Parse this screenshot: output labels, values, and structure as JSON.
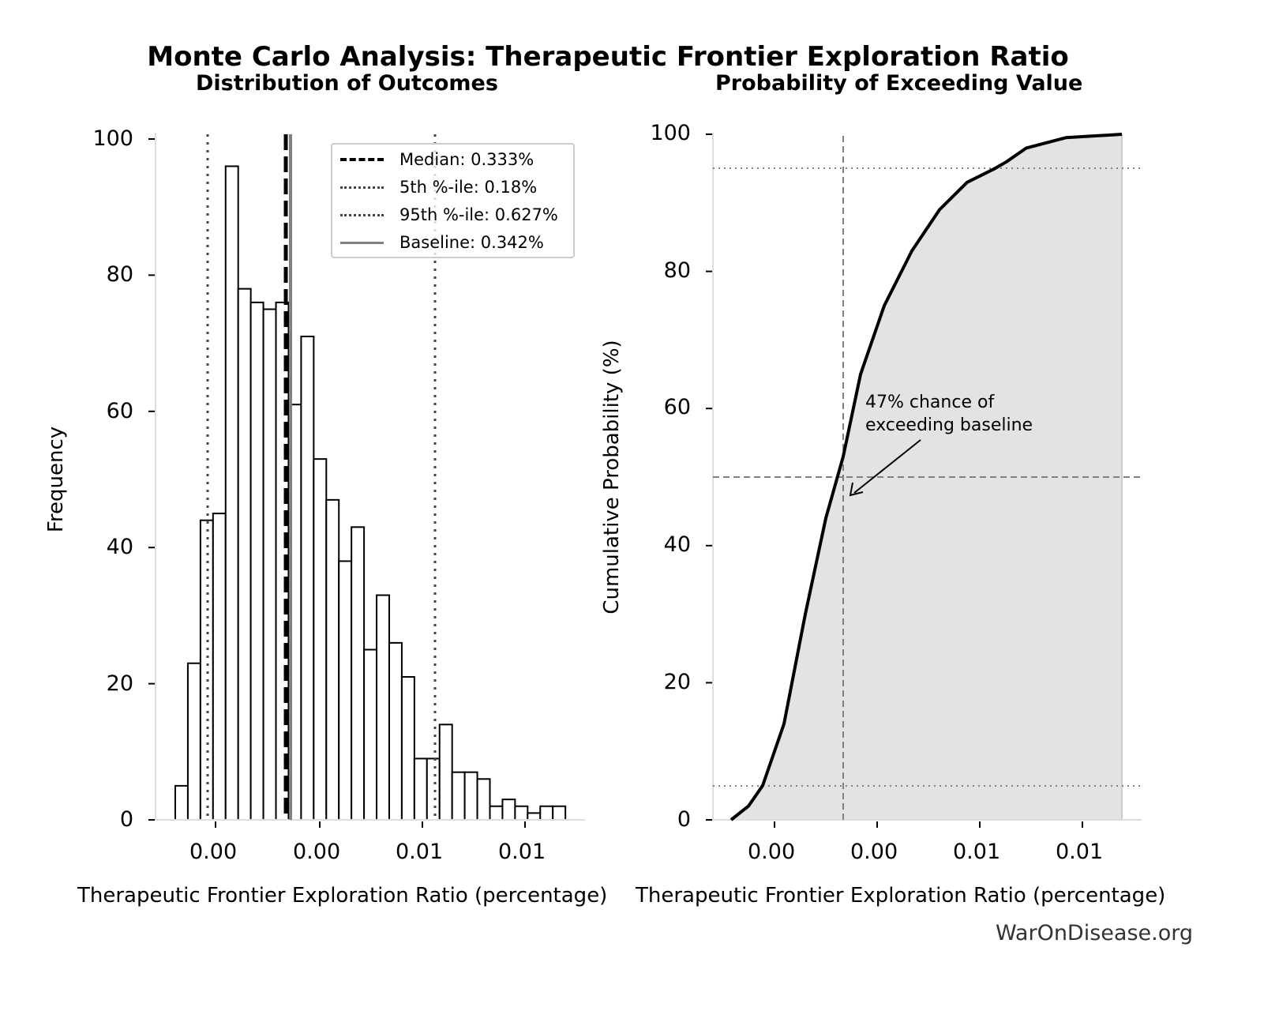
{
  "title": "Monte Carlo Analysis: Therapeutic Frontier Exploration Ratio",
  "footer": "WarOnDisease.org",
  "left_panel": {
    "subtitle": "Distribution of Outcomes",
    "xlabel": "Therapeutic Frontier Exploration Ratio (percentage)",
    "ylabel": "Frequency",
    "yticks": [
      "0",
      "20",
      "40",
      "60",
      "80",
      "100"
    ],
    "xticks": [
      "0.00",
      "0.00",
      "0.01",
      "0.01"
    ],
    "legend": [
      {
        "label": "Median: 0.333%",
        "style": "dashed",
        "color": "#000000"
      },
      {
        "label": "5th %-ile: 0.18%",
        "style": "dotted",
        "color": "#444444"
      },
      {
        "label": "95th %-ile: 0.627%",
        "style": "dotted",
        "color": "#444444"
      },
      {
        "label": "Baseline: 0.342%",
        "style": "solid",
        "color": "#808080"
      }
    ]
  },
  "right_panel": {
    "subtitle": "Probability of Exceeding Value",
    "xlabel": "Therapeutic Frontier Exploration Ratio (percentage)",
    "ylabel": "Cumulative Probability (%)",
    "yticks": [
      "0",
      "20",
      "40",
      "60",
      "80",
      "100"
    ],
    "xticks": [
      "0.00",
      "0.00",
      "0.01",
      "0.01"
    ],
    "annotation_line1": "47% chance of",
    "annotation_line2": "exceeding baseline"
  },
  "colors": {
    "bar_edge": "#000000",
    "bar_fill": "#ffffff",
    "fill_area": "#e3e3e3",
    "ref_lines": "#808080",
    "footer": "#333333"
  },
  "chart_data": [
    {
      "type": "bar",
      "title": "Distribution of Outcomes",
      "xlabel": "Therapeutic Frontier Exploration Ratio (percentage)",
      "ylabel": "Frequency",
      "ylim": [
        0,
        100
      ],
      "bin_range_percent": [
        0.1,
        0.85
      ],
      "values": [
        5,
        23,
        44,
        45,
        96,
        78,
        76,
        75,
        76,
        61,
        71,
        53,
        47,
        38,
        43,
        25,
        33,
        26,
        21,
        9,
        9,
        14,
        7,
        7,
        6,
        2,
        3,
        2,
        1,
        2,
        2
      ],
      "vlines": [
        {
          "name": "Median",
          "value": 0.333,
          "style": "dashed"
        },
        {
          "name": "5th %-ile",
          "value": 0.18,
          "style": "dotted"
        },
        {
          "name": "95th %-ile",
          "value": 0.627,
          "style": "dotted"
        },
        {
          "name": "Baseline",
          "value": 0.342,
          "style": "solid"
        }
      ],
      "xtick_labels": [
        "0.00",
        "0.00",
        "0.01",
        "0.01"
      ],
      "legend_position": "upper right"
    },
    {
      "type": "line",
      "title": "Probability of Exceeding Value",
      "xlabel": "Therapeutic Frontier Exploration Ratio (percentage)",
      "ylabel": "Cumulative Probability (%)",
      "ylim": [
        0,
        100
      ],
      "x_percent": [
        0.1,
        0.15,
        0.18,
        0.22,
        0.26,
        0.3,
        0.342,
        0.38,
        0.42,
        0.46,
        0.5,
        0.55,
        0.6,
        0.627,
        0.68,
        0.75,
        0.85
      ],
      "y": [
        0,
        2,
        5,
        14,
        30,
        44,
        53,
        65,
        75,
        83,
        89,
        93,
        95,
        96,
        98,
        99.5,
        100
      ],
      "hlines": [
        5,
        50,
        95
      ],
      "vline_baseline": 0.342,
      "annotation": "47% chance of exceeding baseline",
      "xtick_labels": [
        "0.00",
        "0.00",
        "0.01",
        "0.01"
      ],
      "fill_under_curve": true
    }
  ]
}
